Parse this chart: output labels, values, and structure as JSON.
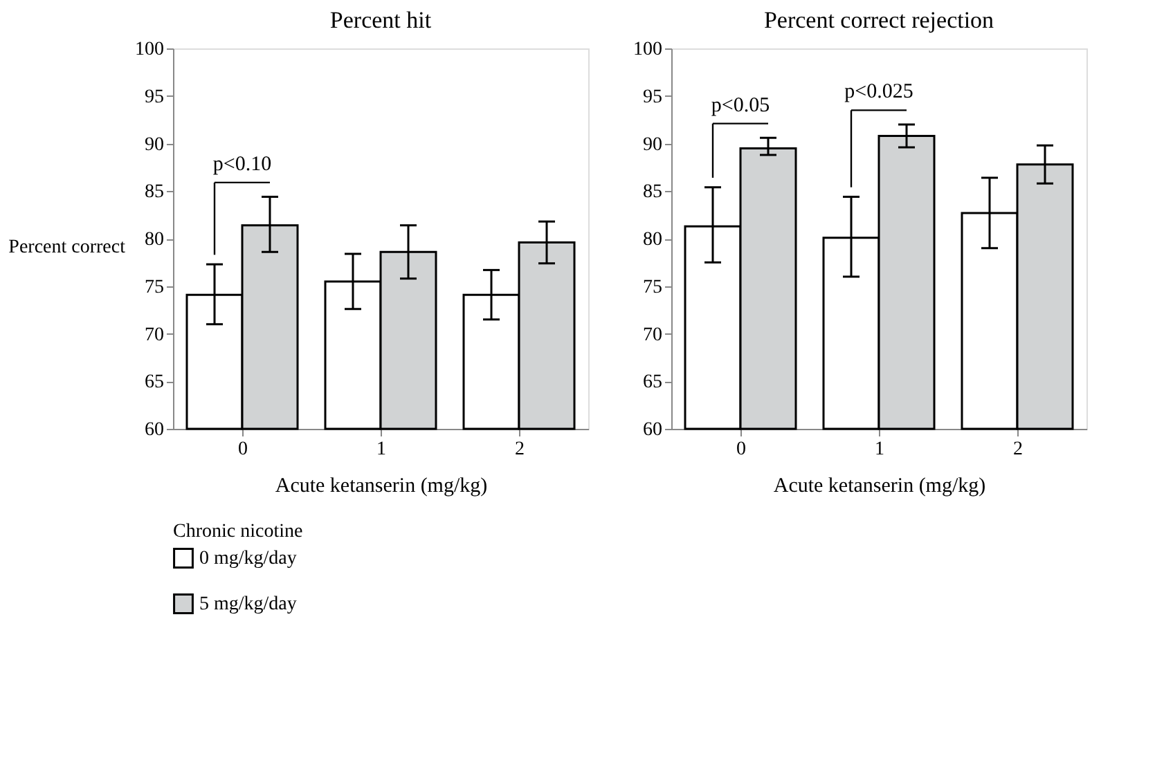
{
  "chart_data": [
    {
      "type": "bar",
      "title": "Percent hit",
      "xlabel": "Acute ketanserin (mg/kg)",
      "ylabel": "Percent correct",
      "categories": [
        "0",
        "1",
        "2"
      ],
      "ylim": [
        60,
        100
      ],
      "yticks": [
        60,
        65,
        70,
        75,
        80,
        85,
        90,
        95,
        100
      ],
      "legend_title": "Chronic nicotine",
      "legend": "bottom",
      "grid": false,
      "series": [
        {
          "name": "0 mg/kg/day",
          "color": "#ffffff",
          "values": [
            74.1,
            75.5,
            74.1
          ],
          "errors": [
            [
              71.0,
              77.3
            ],
            [
              72.6,
              78.4
            ],
            [
              71.5,
              76.7
            ]
          ]
        },
        {
          "name": "5 mg/kg/day",
          "color": "#d1d3d4",
          "values": [
            81.4,
            78.6,
            79.6
          ],
          "errors": [
            [
              78.6,
              84.4
            ],
            [
              75.8,
              81.4
            ],
            [
              77.4,
              81.8
            ]
          ]
        }
      ],
      "annotations": [
        "p<0.10"
      ]
    },
    {
      "type": "bar",
      "title": "Percent correct rejection",
      "xlabel": "Acute ketanserin (mg/kg)",
      "categories": [
        "0",
        "1",
        "2"
      ],
      "ylim": [
        60,
        100
      ],
      "yticks": [
        60,
        65,
        70,
        75,
        80,
        85,
        90,
        95,
        100
      ],
      "grid": false,
      "series": [
        {
          "name": "0 mg/kg/day",
          "color": "#ffffff",
          "values": [
            81.3,
            80.1,
            82.7
          ],
          "errors": [
            [
              77.5,
              85.4
            ],
            [
              76.0,
              84.4
            ],
            [
              79.0,
              86.4
            ]
          ]
        },
        {
          "name": "5 mg/kg/day",
          "color": "#d1d3d4",
          "values": [
            89.5,
            90.8,
            87.8
          ],
          "errors": [
            [
              88.8,
              90.6
            ],
            [
              89.6,
              92.0
            ],
            [
              85.8,
              89.8
            ]
          ]
        }
      ],
      "annotations": [
        "p<0.05",
        "p<0.025"
      ]
    }
  ]
}
